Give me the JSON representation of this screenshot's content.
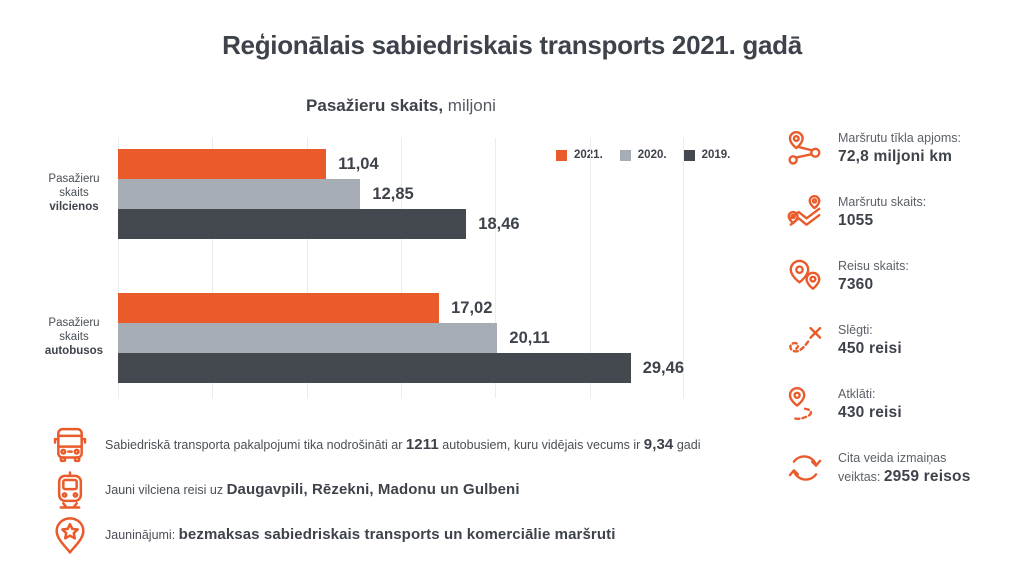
{
  "title": "Reģionālais sabiedriskais transports 2021. gadā",
  "subtitle": {
    "bold": "Pasažieru skaits,",
    "regular": " miljoni"
  },
  "colors": {
    "accent_orange": "#ea5b2b",
    "bar_2021": "#ea5b2b",
    "bar_2020": "#a6adb5",
    "bar_2019": "#44484f",
    "text_dark": "#3e434b",
    "text_gray": "#5b6067",
    "gridline": "#ececee"
  },
  "chart_data": {
    "type": "bar",
    "orientation": "horizontal",
    "title": "Pasažieru skaits, miljoni",
    "xlim": [
      0,
      30
    ],
    "gridlines": [
      0,
      5,
      10,
      15,
      20,
      25,
      30
    ],
    "grid": "vertical-faint",
    "legend_position": "top-right",
    "groups": [
      {
        "label_lines": [
          "Pasažieru",
          "skaits"
        ],
        "label_bold": "vilcienos"
      },
      {
        "label_lines": [
          "Pasažieru",
          "skaits"
        ],
        "label_bold": "autobusos"
      }
    ],
    "series": [
      {
        "name": "2021.",
        "color": "#ea5b2b",
        "values": [
          11.04,
          17.02
        ],
        "labels": [
          "11,04",
          "17,02"
        ]
      },
      {
        "name": "2020.",
        "color": "#a6adb5",
        "values": [
          12.85,
          20.11
        ],
        "labels": [
          "12,85",
          "20,11"
        ]
      },
      {
        "name": "2019.",
        "color": "#44484f",
        "values": [
          18.46,
          29.46
        ],
        "labels": [
          "18,46",
          "29,46"
        ]
      }
    ]
  },
  "sidebar": {
    "stats": [
      {
        "icon": "route-network-icon",
        "label": "Maršrutu tīkla apjoms:",
        "value_prefix": "",
        "value": "72,8 miljoni km"
      },
      {
        "icon": "map-routes-icon",
        "label": "Maršrutu skaits:",
        "value_prefix": "",
        "value": "1055"
      },
      {
        "icon": "map-pins-icon",
        "label": "Reisu skaits:",
        "value_prefix": "",
        "value": "7360"
      },
      {
        "icon": "closed-route-icon",
        "label": "Slēgti:",
        "value_prefix": "",
        "value": "450 reisi"
      },
      {
        "icon": "opened-route-icon",
        "label": "Atklāti:",
        "value_prefix": "",
        "value": "430 reisi"
      },
      {
        "icon": "refresh-icon",
        "label": "Cita veida izmaiņas",
        "value_prefix": "veiktas: ",
        "value": "2959 reisos"
      }
    ]
  },
  "notes": [
    {
      "icon": "bus-icon",
      "segments": [
        {
          "t": "Sabiedriskā transporta pakalpojumi tika nodrošināti ar ",
          "b": false
        },
        {
          "t": "1211",
          "b": true
        },
        {
          "t": " autobusiem, kuru vidējais vecums ir ",
          "b": false
        },
        {
          "t": "9,34",
          "b": true
        },
        {
          "t": " gadi",
          "b": false
        }
      ]
    },
    {
      "icon": "train-icon",
      "segments": [
        {
          "t": "Jauni vilciena reisi uz ",
          "b": false
        },
        {
          "t": "Daugavpili, Rēzekni, Madonu un Gulbeni",
          "b": true
        }
      ]
    },
    {
      "icon": "star-pin-icon",
      "segments": [
        {
          "t": "Jauninājumi: ",
          "b": false
        },
        {
          "t": "bezmaksas sabiedriskais transports un komerciālie maršruti",
          "b": true
        }
      ]
    }
  ]
}
